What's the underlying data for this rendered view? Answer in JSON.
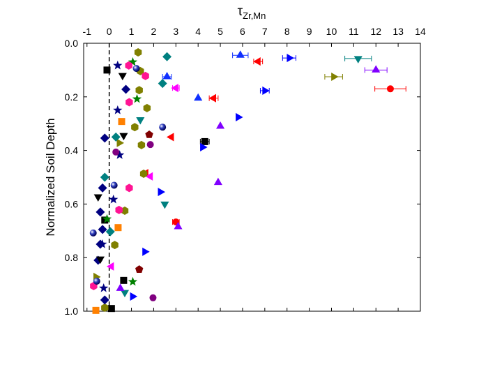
{
  "chart_data": {
    "type": "scatter",
    "x_label": "τ",
    "x_label_sub": "Zr,Mn",
    "y_label": "Normalized Soil Depth",
    "xlim": [
      -1.15,
      14
    ],
    "xticks": [
      -1,
      0,
      1,
      2,
      3,
      4,
      5,
      6,
      7,
      8,
      9,
      10,
      11,
      12,
      13,
      14
    ],
    "ylim": [
      0,
      1
    ],
    "y_reversed": true,
    "yticks": [
      {
        "value": 0,
        "label": "0.0"
      },
      {
        "value": 0.2,
        "label": "0.2"
      },
      {
        "value": 0.4,
        "label": "0.4"
      },
      {
        "value": 0.6,
        "label": "0.6"
      },
      {
        "value": 0.8,
        "label": "0.8"
      },
      {
        "value": 1,
        "label": "1.0"
      }
    ],
    "series": [
      {
        "color": "#000000",
        "marker": "square",
        "x": [
          -0.1,
          4.3,
          -0.2,
          0.65,
          0.1
        ],
        "y": [
          0.1,
          0.367,
          0.66,
          0.885,
          0.99
        ],
        "xerr": [
          null,
          0.2,
          null,
          null,
          null
        ]
      },
      {
        "color": "#ff0000",
        "marker": "circle",
        "x": [
          12.65,
          3.0
        ],
        "y": [
          0.17,
          0.667
        ],
        "xerr": [
          0.7,
          0.15
        ]
      },
      {
        "color": "#1030ff",
        "marker": "triangle-up",
        "x": [
          5.9,
          2.6,
          4.0
        ],
        "y": [
          0.045,
          0.125,
          0.205
        ],
        "xerr": [
          0.35,
          0.2,
          null
        ]
      },
      {
        "color": "#ff0000",
        "marker": "triangle-left",
        "x": [
          6.7,
          4.7,
          2.8,
          1.65
        ],
        "y": [
          0.068,
          0.205,
          0.35,
          0.485
        ],
        "xerr": [
          0.2,
          0.2,
          null,
          null
        ]
      },
      {
        "color": "#0000ff",
        "marker": "triangle-right",
        "x": [
          8.1,
          7.0,
          5.8,
          4.2,
          2.3,
          1.6,
          1.05
        ],
        "y": [
          0.055,
          0.177,
          0.276,
          0.388,
          0.555,
          0.778,
          0.945
        ],
        "xerr": [
          0.3,
          0.2,
          null,
          null,
          null,
          null,
          null
        ]
      },
      {
        "color": "#008080",
        "marker": "triangle-down",
        "x": [
          11.2,
          2.5,
          1.4,
          0.7
        ],
        "y": [
          0.057,
          0.6,
          0.285,
          0.93
        ],
        "xerr": [
          0.6,
          null,
          null,
          null
        ]
      },
      {
        "color": "#8000ff",
        "marker": "triangle-up",
        "x": [
          12.0,
          5.0,
          4.9,
          3.1,
          0.5
        ],
        "y": [
          0.1,
          0.31,
          0.52,
          0.685,
          0.915
        ],
        "xerr": [
          0.5,
          null,
          null,
          null,
          null
        ]
      },
      {
        "color": "#808000",
        "marker": "triangle-right",
        "x": [
          10.1,
          0.45,
          -0.6
        ],
        "y": [
          0.125,
          0.372,
          0.872
        ],
        "xerr": [
          0.4,
          null,
          null
        ]
      },
      {
        "color": "#ff00ff",
        "marker": "triangle-left",
        "x": [
          3.0,
          1.85,
          0.1
        ],
        "y": [
          0.167,
          0.497,
          0.833
        ],
        "xerr": [
          0.15,
          null,
          null
        ]
      },
      {
        "color": "#808000",
        "marker": "hexagon",
        "x": [
          1.3,
          1.4,
          1.35,
          1.7,
          1.15,
          1.45,
          1.55,
          0.7,
          0.25,
          -0.2
        ],
        "y": [
          0.034,
          0.104,
          0.175,
          0.242,
          0.313,
          0.38,
          0.487,
          0.625,
          0.753,
          0.987
        ]
      },
      {
        "color": "#008080",
        "marker": "diamond",
        "x": [
          2.6,
          2.4,
          0.3,
          -0.2,
          0.05
        ],
        "y": [
          0.05,
          0.15,
          0.35,
          0.5,
          0.703
        ]
      },
      {
        "color": "#000080",
        "marker": "diamond",
        "x": [
          0.75,
          -0.2,
          -0.3,
          -0.4,
          -0.3,
          -0.4,
          -0.5,
          -0.2
        ],
        "y": [
          0.172,
          0.354,
          0.54,
          0.63,
          0.695,
          0.75,
          0.81,
          0.958
        ]
      },
      {
        "color": "#000000",
        "marker": "triangle-down",
        "x": [
          0.6,
          0.65,
          -0.5,
          -0.4
        ],
        "y": [
          0.12,
          0.344,
          0.573,
          0.805
        ]
      },
      {
        "color": "#000080",
        "marker": "star",
        "x": [
          0.38,
          0.38,
          0.47,
          0.19,
          -0.31,
          -0.25
        ],
        "y": [
          0.083,
          0.25,
          0.417,
          0.583,
          0.75,
          0.914
        ]
      },
      {
        "color": "#008000",
        "marker": "star",
        "x": [
          1.06,
          1.25,
          -0.1,
          1.06
        ],
        "y": [
          0.07,
          0.208,
          0.656,
          0.89
        ]
      },
      {
        "color": "#ff1493",
        "marker": "hexagon",
        "x": [
          0.88,
          1.63,
          0.9,
          0.9,
          0.44,
          -0.7
        ],
        "y": [
          0.083,
          0.122,
          0.22,
          0.54,
          0.622,
          0.906
        ]
      },
      {
        "color": "#000080",
        "marker": "ball",
        "x": [
          1.22,
          2.4,
          0.22,
          -0.72,
          -0.56
        ],
        "y": [
          0.094,
          0.313,
          0.53,
          0.708,
          0.888
        ]
      },
      {
        "color": "#ff8000",
        "marker": "square",
        "x": [
          0.56,
          0.4,
          -0.6
        ],
        "y": [
          0.292,
          0.688,
          0.997
        ]
      },
      {
        "color": "#800000",
        "marker": "pentagon",
        "x": [
          1.8,
          1.35
        ],
        "y": [
          0.341,
          0.844
        ]
      },
      {
        "color": "#800080",
        "marker": "circle",
        "x": [
          1.85,
          0.3,
          1.97
        ],
        "y": [
          0.378,
          0.406,
          0.95
        ]
      }
    ]
  }
}
